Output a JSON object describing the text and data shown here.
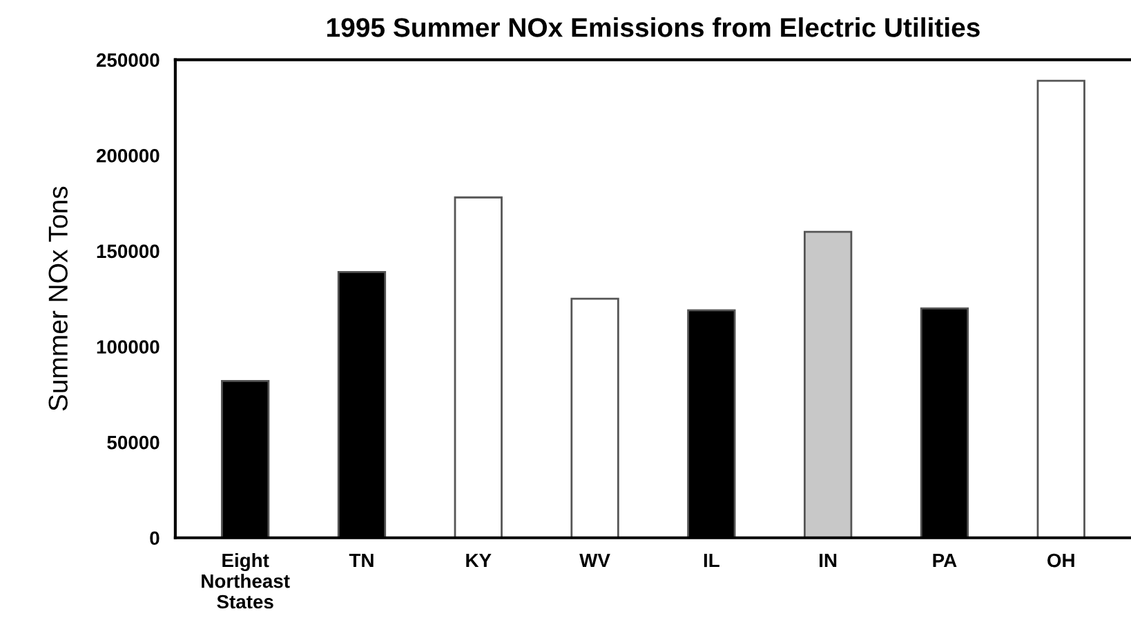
{
  "chart_data": {
    "type": "bar",
    "title": "1995 Summer NOx Emissions from Electric Utilities",
    "ylabel": "Summer NOx Tons",
    "categories": [
      "Eight\nNortheast\nStates",
      "TN",
      "KY",
      "WV",
      "IL",
      "IN",
      "PA",
      "OH"
    ],
    "values": [
      82000,
      139000,
      178000,
      125000,
      119000,
      160000,
      120000,
      239000
    ],
    "colors": [
      "#000000",
      "#000000",
      "#ffffff",
      "#ffffff",
      "#000000",
      "#c8c8c8",
      "#000000",
      "#ffffff"
    ],
    "ylim": [
      0,
      250000
    ],
    "yticks": [
      0,
      50000,
      100000,
      150000,
      200000,
      250000
    ],
    "grid": false,
    "legend": false
  }
}
